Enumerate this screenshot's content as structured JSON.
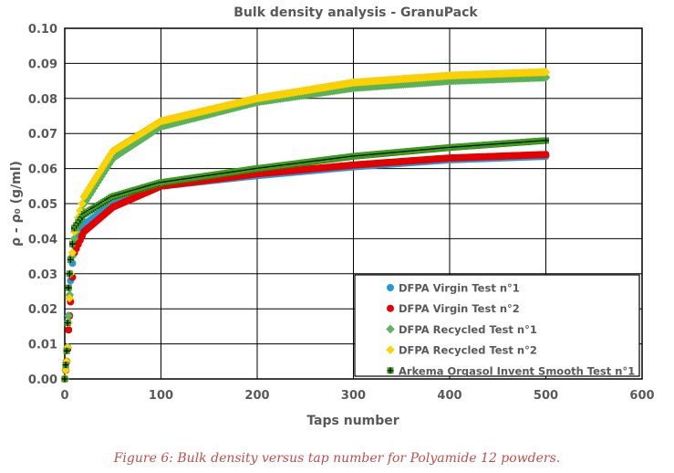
{
  "chart_data": {
    "type": "scatter",
    "title": "Bulk density analysis - GranuPack",
    "xlabel": "Taps number",
    "ylabel": "ρ - ρ₀ (g/ml)",
    "xlim": [
      0,
      600
    ],
    "ylim": [
      0,
      0.1
    ],
    "xticks": [
      "0",
      "100",
      "200",
      "300",
      "400",
      "500",
      "600"
    ],
    "yticks": [
      "0.00",
      "0.01",
      "0.02",
      "0.03",
      "0.04",
      "0.05",
      "0.06",
      "0.07",
      "0.08",
      "0.09",
      "0.10"
    ],
    "grid": true,
    "legend_position": "bottom-right",
    "series": [
      {
        "name": "DFPA Virgin Test n°1",
        "color": "#1e9be0",
        "marker": "circle",
        "x": [
          0,
          2,
          3,
          4,
          6,
          10,
          20,
          50,
          100,
          200,
          300,
          400,
          500
        ],
        "y": [
          0,
          0.005,
          0.009,
          0.018,
          0.028,
          0.038,
          0.044,
          0.05,
          0.055,
          0.058,
          0.0605,
          0.0625,
          0.0635
        ]
      },
      {
        "name": "DFPA Virgin Test n°2",
        "color": "#e50000",
        "marker": "circle",
        "x": [
          0,
          2,
          3,
          4,
          6,
          10,
          20,
          50,
          100,
          200,
          300,
          400,
          500
        ],
        "y": [
          0,
          0.005,
          0.0085,
          0.014,
          0.022,
          0.036,
          0.042,
          0.049,
          0.055,
          0.0585,
          0.061,
          0.063,
          0.064
        ]
      },
      {
        "name": "DFPA Recycled Test n°1",
        "color": "#5cb85c",
        "marker": "diamond",
        "x": [
          0,
          2,
          3,
          4,
          6,
          10,
          20,
          50,
          100,
          200,
          300,
          400,
          500
        ],
        "y": [
          0,
          0.005,
          0.009,
          0.018,
          0.03,
          0.04,
          0.05,
          0.063,
          0.072,
          0.079,
          0.083,
          0.085,
          0.086
        ]
      },
      {
        "name": "DFPA Recycled Test n°2",
        "color": "#ffd700",
        "marker": "diamond",
        "x": [
          0,
          2,
          3,
          4,
          6,
          10,
          20,
          50,
          100,
          200,
          300,
          400,
          500
        ],
        "y": [
          0,
          0.005,
          0.009,
          0.016,
          0.03,
          0.042,
          0.052,
          0.065,
          0.0735,
          0.08,
          0.0845,
          0.0865,
          0.0875
        ]
      },
      {
        "name": "Arkema Orgasol Invent Smooth Test n°1",
        "color": "#3c9c1c",
        "marker": "plus",
        "x": [
          0,
          2,
          3,
          4,
          6,
          10,
          20,
          50,
          100,
          200,
          300,
          400,
          500
        ],
        "y": [
          0,
          0.008,
          0.016,
          0.026,
          0.034,
          0.043,
          0.047,
          0.052,
          0.056,
          0.06,
          0.0635,
          0.066,
          0.068
        ]
      }
    ]
  },
  "caption": "Figure 6: Bulk density versus tap number for Polyamide 12 powders."
}
